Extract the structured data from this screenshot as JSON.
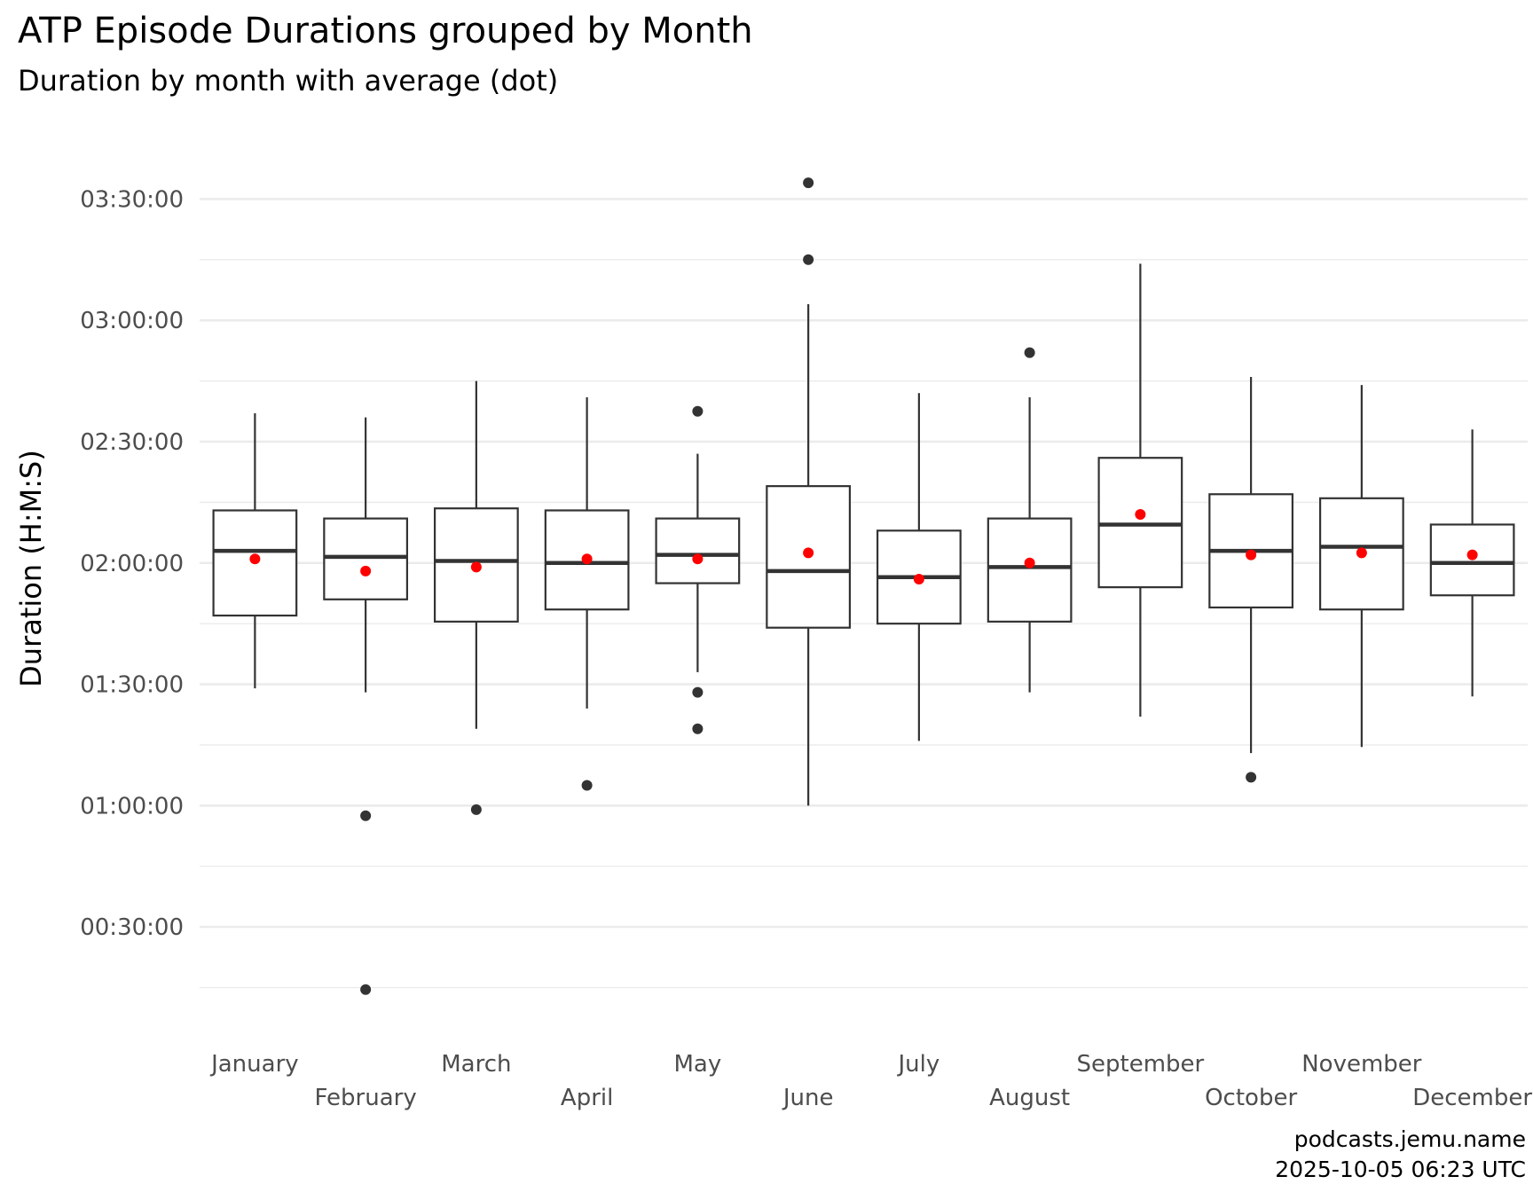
{
  "header": {
    "title": "ATP Episode Durations grouped by Month",
    "subtitle": "Duration by month with average (dot)"
  },
  "caption": {
    "line1": "podcasts.jemu.name",
    "line2": "2025-10-05 06:23 UTC"
  },
  "chart_data": {
    "type": "box",
    "title": "ATP Episode Durations grouped by Month",
    "subtitle": "Duration by month with average (dot)",
    "xlabel": "",
    "ylabel": "Duration (H:M:S)",
    "y_unit": "H:M:S",
    "ylim": [
      "00:07:00",
      "03:45:00"
    ],
    "y_ticks": [
      "00:30:00",
      "01:00:00",
      "01:30:00",
      "02:00:00",
      "02:30:00",
      "03:00:00",
      "03:30:00"
    ],
    "grid": true,
    "colors": {
      "box": "#333333",
      "mean": "#ff0000",
      "grid": "#ebebeb"
    },
    "categories": [
      "January",
      "February",
      "March",
      "April",
      "May",
      "June",
      "July",
      "August",
      "September",
      "October",
      "November",
      "December"
    ],
    "boxes": [
      {
        "month": "January",
        "whisker_low": "01:29:00",
        "q1": "01:47:00",
        "median": "02:03:00",
        "q3": "02:13:00",
        "whisker_high": "02:37:00",
        "mean": "02:01:00",
        "outliers": []
      },
      {
        "month": "February",
        "whisker_low": "01:28:00",
        "q1": "01:51:00",
        "median": "02:01:30",
        "q3": "02:11:00",
        "whisker_high": "02:36:00",
        "mean": "01:58:00",
        "outliers": [
          "00:57:30",
          "00:14:30"
        ]
      },
      {
        "month": "March",
        "whisker_low": "01:19:00",
        "q1": "01:45:30",
        "median": "02:00:30",
        "q3": "02:13:30",
        "whisker_high": "02:45:00",
        "mean": "01:59:00",
        "outliers": [
          "00:59:00"
        ]
      },
      {
        "month": "April",
        "whisker_low": "01:24:00",
        "q1": "01:48:30",
        "median": "02:00:00",
        "q3": "02:13:00",
        "whisker_high": "02:41:00",
        "mean": "02:01:00",
        "outliers": [
          "01:05:00"
        ]
      },
      {
        "month": "May",
        "whisker_low": "01:33:00",
        "q1": "01:55:00",
        "median": "02:02:00",
        "q3": "02:11:00",
        "whisker_high": "02:27:00",
        "mean": "02:01:00",
        "outliers": [
          "02:37:30",
          "01:28:00",
          "01:19:00"
        ]
      },
      {
        "month": "June",
        "whisker_low": "01:00:00",
        "q1": "01:44:00",
        "median": "01:58:00",
        "q3": "02:19:00",
        "whisker_high": "03:04:00",
        "mean": "02:02:30",
        "outliers": [
          "03:34:00",
          "03:15:00"
        ]
      },
      {
        "month": "July",
        "whisker_low": "01:16:00",
        "q1": "01:45:00",
        "median": "01:56:30",
        "q3": "02:08:00",
        "whisker_high": "02:42:00",
        "mean": "01:56:00",
        "outliers": []
      },
      {
        "month": "August",
        "whisker_low": "01:28:00",
        "q1": "01:45:30",
        "median": "01:59:00",
        "q3": "02:11:00",
        "whisker_high": "02:41:00",
        "mean": "02:00:00",
        "outliers": [
          "02:52:00"
        ]
      },
      {
        "month": "September",
        "whisker_low": "01:22:00",
        "q1": "01:54:00",
        "median": "02:09:30",
        "q3": "02:26:00",
        "whisker_high": "03:14:00",
        "mean": "02:12:00",
        "outliers": []
      },
      {
        "month": "October",
        "whisker_low": "01:13:00",
        "q1": "01:49:00",
        "median": "02:03:00",
        "q3": "02:17:00",
        "whisker_high": "02:46:00",
        "mean": "02:02:00",
        "outliers": [
          "01:07:00"
        ]
      },
      {
        "month": "November",
        "whisker_low": "01:14:30",
        "q1": "01:48:30",
        "median": "02:04:00",
        "q3": "02:16:00",
        "whisker_high": "02:44:00",
        "mean": "02:02:30",
        "outliers": []
      },
      {
        "month": "December",
        "whisker_low": "01:27:00",
        "q1": "01:52:00",
        "median": "02:00:00",
        "q3": "02:09:30",
        "whisker_high": "02:33:00",
        "mean": "02:02:00",
        "outliers": []
      }
    ]
  }
}
